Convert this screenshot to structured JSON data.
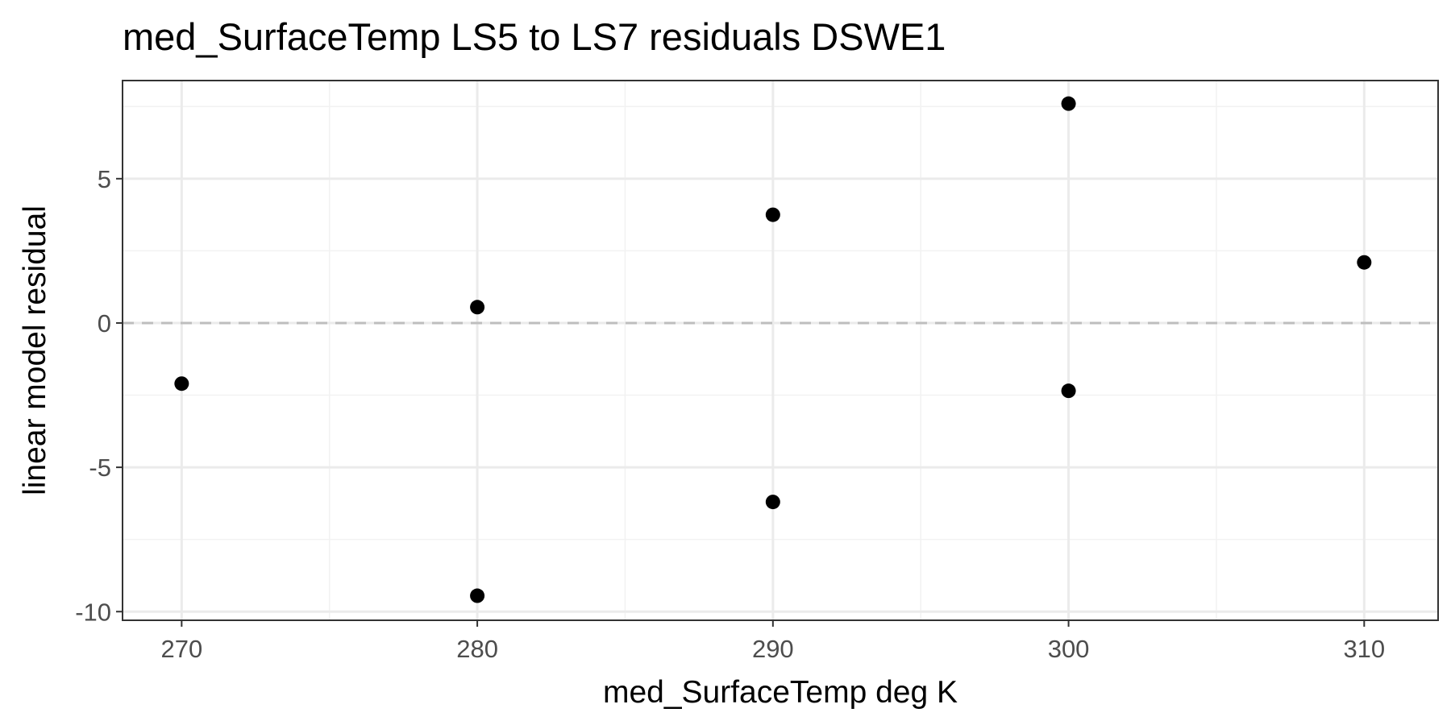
{
  "chart_data": {
    "type": "scatter",
    "title": "med_SurfaceTemp LS5 to LS7 residuals DSWE1",
    "xlabel": "med_SurfaceTemp  deg K",
    "ylabel": "linear model residual",
    "xlim": [
      268,
      312.5
    ],
    "ylim": [
      -10.3,
      8.4
    ],
    "x_ticks": [
      270,
      280,
      290,
      300,
      310
    ],
    "y_ticks": [
      -10,
      -5,
      0,
      5
    ],
    "x_tick_labels": [
      "270",
      "280",
      "290",
      "300",
      "310"
    ],
    "y_tick_labels": [
      "-10",
      "-5",
      "0",
      "5"
    ],
    "x_minor_ticks": [
      275,
      285,
      295,
      305
    ],
    "y_minor_ticks": [
      -7.5,
      -2.5,
      2.5,
      7.5
    ],
    "reference_line": {
      "y": 0,
      "style": "dashed",
      "color": "#bebebe"
    },
    "grid": true,
    "point_color": "#000000",
    "points": [
      {
        "x": 270,
        "y": -2.1
      },
      {
        "x": 280,
        "y": 0.55
      },
      {
        "x": 280,
        "y": -9.45
      },
      {
        "x": 290,
        "y": 3.75
      },
      {
        "x": 290,
        "y": -6.2
      },
      {
        "x": 300,
        "y": 7.6
      },
      {
        "x": 300,
        "y": -2.35
      },
      {
        "x": 310,
        "y": 2.1
      }
    ]
  }
}
